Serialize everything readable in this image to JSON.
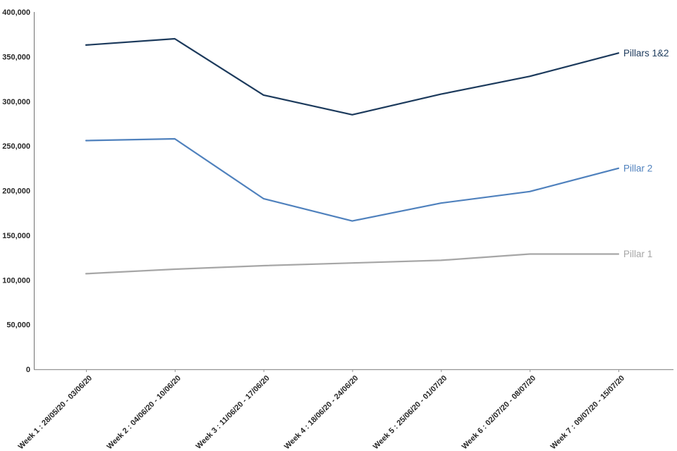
{
  "chart_data": {
    "type": "line",
    "title": "",
    "xlabel": "",
    "ylabel": "",
    "grid": false,
    "legend_position": "inline-right-of-last-point",
    "ylim": [
      0,
      400000
    ],
    "ytick_step": 50000,
    "ytick_labels": [
      "0",
      "50,000",
      "100,000",
      "150,000",
      "200,000",
      "250,000",
      "300,000",
      "350,000",
      "400,000"
    ],
    "categories": [
      "Week 1 : 28/05/20 - 03/06/20",
      "Week 2 : 04/06/20 - 10/06/20",
      "Week 3 : 11/06/20 - 17/06/20",
      "Week 4 : 18/06/20 - 24/06/20",
      "Week 5 : 25/06/20 - 01/07/20",
      "Week 6 : 02/07/20 - 08/07/20",
      "Week 7 : 09/07/20 - 15/07/20"
    ],
    "series": [
      {
        "name": "Pillars 1&2",
        "color": "#1c3a5c",
        "values": [
          363000,
          370000,
          307000,
          285000,
          308000,
          328000,
          354000
        ]
      },
      {
        "name": "Pillar 2",
        "color": "#4f81bd",
        "values": [
          256000,
          258000,
          191000,
          166000,
          186000,
          199000,
          225000
        ]
      },
      {
        "name": "Pillar 1",
        "color": "#a6a6a6",
        "values": [
          107000,
          112000,
          116000,
          119000,
          122000,
          129000,
          129000
        ]
      }
    ],
    "axis_colors": {
      "y_axis": "#717171",
      "x_axis": "#949494"
    }
  }
}
